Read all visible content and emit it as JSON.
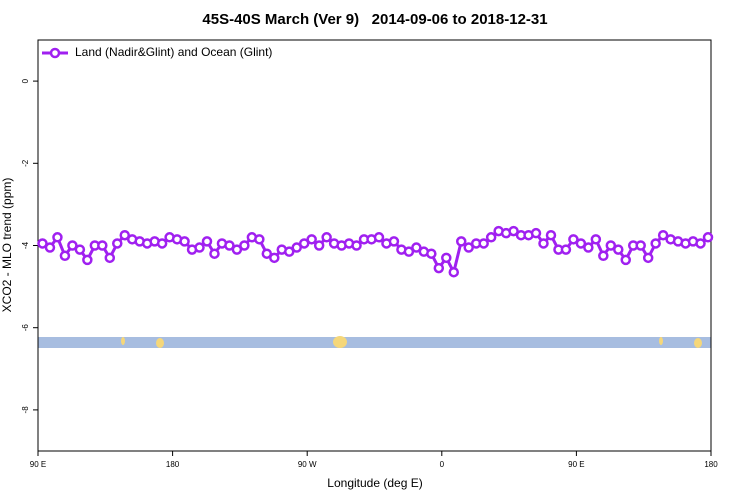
{
  "chart_data": {
    "type": "line",
    "title": "45S-40S March (Ver 9)   2014-09-06 to 2018-12-31",
    "xlabel": "Longitude (deg E)",
    "ylabel": "XCO2 - MLO trend (ppm)",
    "xlim": [
      90,
      540
    ],
    "ylim": [
      -9,
      1
    ],
    "xticks": [
      {
        "value": 90,
        "label": "90 E"
      },
      180,
      {
        "value": 270,
        "label": "90 W"
      },
      {
        "value": 360,
        "label": "0"
      },
      {
        "value": 450,
        "label": "90 E"
      },
      {
        "value": 540,
        "label": "180"
      }
    ],
    "yticks": [
      0,
      -2,
      -4,
      -6,
      -8
    ],
    "legend": "upper left",
    "x": [
      93,
      98,
      103,
      108,
      113,
      118,
      123,
      128,
      133,
      138,
      143,
      148,
      153,
      158,
      163,
      168,
      173,
      178,
      183,
      188,
      193,
      198,
      203,
      208,
      213,
      218,
      223,
      228,
      233,
      238,
      243,
      248,
      253,
      258,
      263,
      268,
      273,
      278,
      283,
      288,
      293,
      298,
      303,
      308,
      313,
      318,
      323,
      328,
      333,
      338,
      343,
      348,
      353,
      358,
      363,
      368,
      373,
      378,
      383,
      388,
      393,
      398,
      403,
      408,
      413,
      418,
      423,
      428,
      433,
      438,
      443,
      448,
      453,
      458,
      463,
      468,
      473,
      478,
      483,
      488,
      493,
      498,
      503,
      508,
      513,
      518,
      523,
      528,
      533,
      538
    ],
    "series": [
      {
        "name": "Land (Nadir&Glint) and Ocean (Glint)",
        "color": "#a020f0",
        "values": [
          -3.95,
          -4.05,
          -3.8,
          -4.25,
          -4.0,
          -4.1,
          -4.35,
          -4.0,
          -4.0,
          -4.3,
          -3.95,
          -3.75,
          -3.85,
          -3.9,
          -3.95,
          -3.9,
          -3.95,
          -3.8,
          -3.85,
          -3.9,
          -4.1,
          -4.05,
          -3.9,
          -4.2,
          -3.95,
          -4.0,
          -4.1,
          -4.0,
          -3.8,
          -3.85,
          -4.2,
          -4.3,
          -4.1,
          -4.15,
          -4.05,
          -3.95,
          -3.85,
          -4.0,
          -3.8,
          -3.95,
          -4.0,
          -3.95,
          -4.0,
          -3.85,
          -3.85,
          -3.8,
          -3.95,
          -3.9,
          -4.1,
          -4.15,
          -4.05,
          -4.15,
          -4.2,
          -4.55,
          -4.3,
          -4.65,
          -3.9,
          -4.05,
          -3.95,
          -3.95,
          -3.8,
          -3.65,
          -3.7,
          -3.65,
          -3.75,
          -3.75,
          -3.7,
          -3.95,
          -3.75,
          -4.1,
          -4.1,
          -3.85,
          -3.95,
          -4.05,
          -3.85,
          -4.25,
          -4.0,
          -4.1,
          -4.35,
          -4.0,
          -4.0,
          -4.3,
          -3.95,
          -3.75,
          -3.85,
          -3.9,
          -3.95,
          -3.9,
          -3.95,
          -3.8
        ]
      }
    ]
  }
}
